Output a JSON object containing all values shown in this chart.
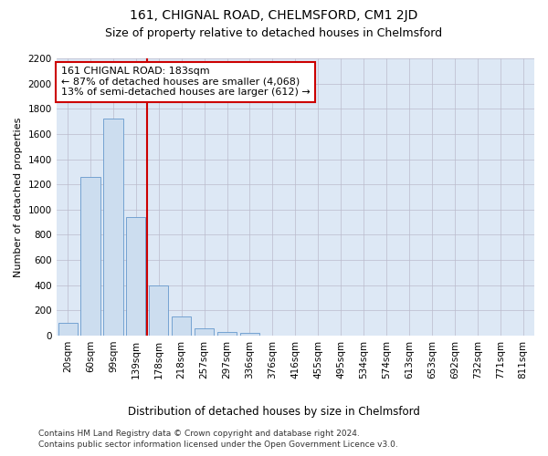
{
  "title": "161, CHIGNAL ROAD, CHELMSFORD, CM1 2JD",
  "subtitle": "Size of property relative to detached houses in Chelmsford",
  "xlabel": "Distribution of detached houses by size in Chelmsford",
  "ylabel": "Number of detached properties",
  "categories": [
    "20sqm",
    "60sqm",
    "99sqm",
    "139sqm",
    "178sqm",
    "218sqm",
    "257sqm",
    "297sqm",
    "336sqm",
    "376sqm",
    "416sqm",
    "455sqm",
    "495sqm",
    "534sqm",
    "574sqm",
    "613sqm",
    "653sqm",
    "692sqm",
    "732sqm",
    "771sqm",
    "811sqm"
  ],
  "values": [
    100,
    1260,
    1720,
    940,
    400,
    150,
    60,
    30,
    20,
    0,
    0,
    0,
    0,
    0,
    0,
    0,
    0,
    0,
    0,
    0,
    0
  ],
  "bar_color": "#ccddef",
  "bar_edge_color": "#6699cc",
  "vline_index": 4,
  "vline_color": "#cc0000",
  "annotation_line1": "161 CHIGNAL ROAD: 183sqm",
  "annotation_line2": "← 87% of detached houses are smaller (4,068)",
  "annotation_line3": "13% of semi-detached houses are larger (612) →",
  "annotation_box_color": "#ffffff",
  "annotation_box_edge": "#cc0000",
  "ylim": [
    0,
    2200
  ],
  "yticks": [
    0,
    200,
    400,
    600,
    800,
    1000,
    1200,
    1400,
    1600,
    1800,
    2000,
    2200
  ],
  "footer_line1": "Contains HM Land Registry data © Crown copyright and database right 2024.",
  "footer_line2": "Contains public sector information licensed under the Open Government Licence v3.0.",
  "bg_color": "#ffffff",
  "plot_bg_color": "#dde8f5",
  "grid_color": "#bbbbcc",
  "title_fontsize": 10,
  "subtitle_fontsize": 9,
  "axis_label_fontsize": 8.5,
  "ylabel_fontsize": 8,
  "tick_fontsize": 7.5,
  "annotation_fontsize": 8,
  "footer_fontsize": 6.5
}
